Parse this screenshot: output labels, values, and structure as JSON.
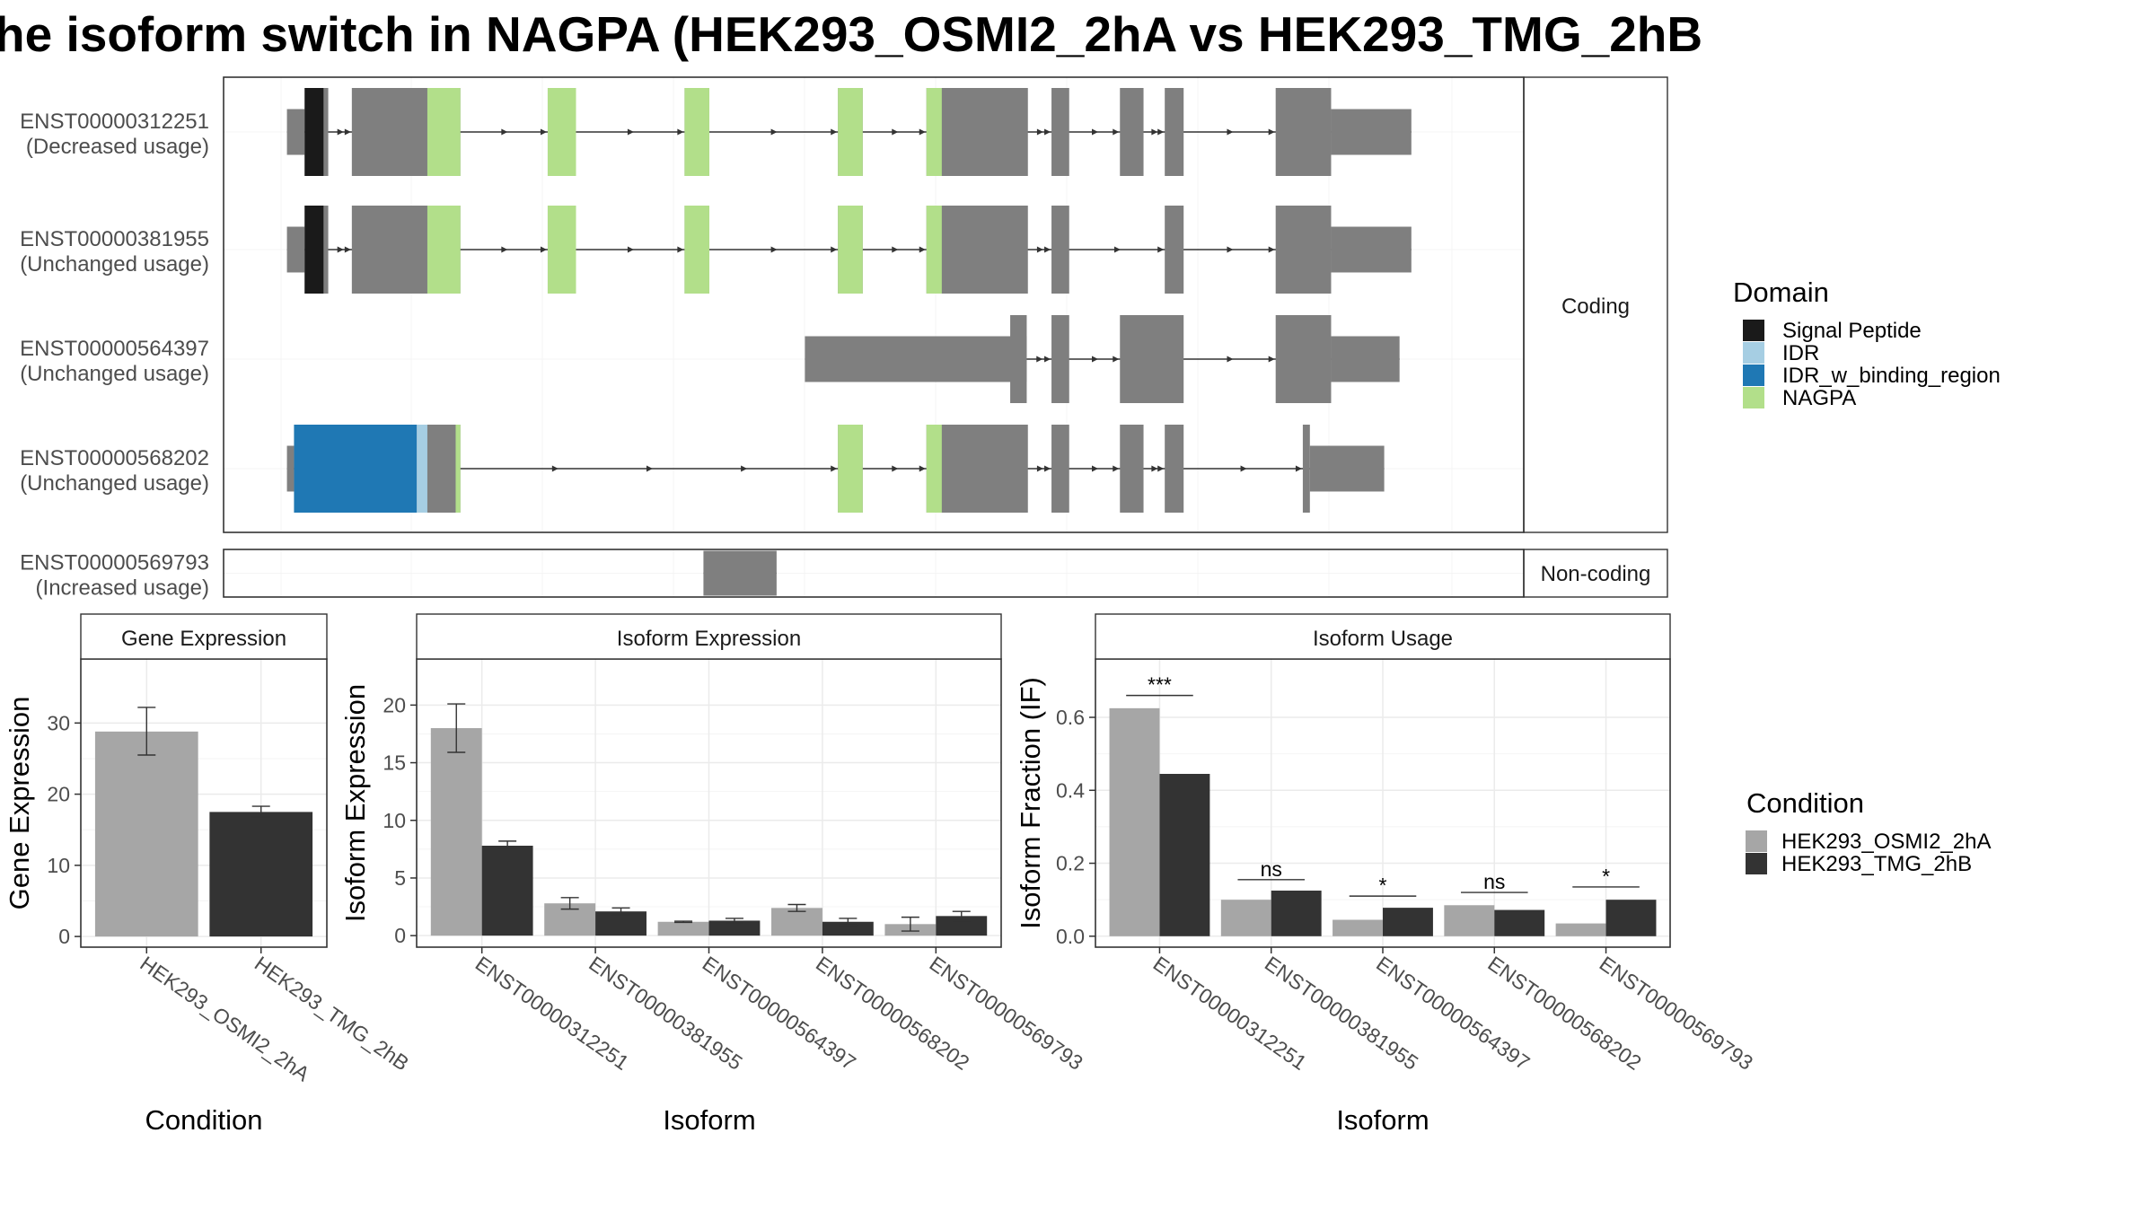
{
  "title": "he isoform switch in NAGPA (HEK293_OSMI2_2hA vs HEK293_TMG_2hB",
  "colors": {
    "exon": "#7f7f7f",
    "intron": "#333333",
    "condition_a": "#a6a6a6",
    "condition_b": "#333333",
    "signal_peptide": "#1a1a1a",
    "idr": "#a6cee3",
    "idr_w_binding_region": "#1f78b4",
    "nagpa": "#b2df8a"
  },
  "structure": {
    "coding_label": "Coding",
    "noncoding_label": "Non-coding",
    "coord_range": [
      0,
      1000
    ],
    "transcripts": [
      {
        "id": "ENST00000312251",
        "usage": "(Decreased usage)",
        "group": "coding",
        "exons": [
          {
            "s": 5,
            "e": 20,
            "cds": false
          },
          {
            "s": 20,
            "e": 40,
            "cds": true
          },
          {
            "s": 60,
            "e": 152,
            "cds": true
          },
          {
            "s": 226,
            "e": 250,
            "cds": true
          },
          {
            "s": 342,
            "e": 363,
            "cds": true
          },
          {
            "s": 472,
            "e": 493,
            "cds": true
          },
          {
            "s": 547,
            "e": 633,
            "cds": true
          },
          {
            "s": 653,
            "e": 668,
            "cds": true
          },
          {
            "s": 711,
            "e": 731,
            "cds": true
          },
          {
            "s": 749,
            "e": 765,
            "cds": true
          },
          {
            "s": 843,
            "e": 890,
            "cds": true
          },
          {
            "s": 890,
            "e": 958,
            "cds": false
          }
        ],
        "domains": [
          {
            "s": 20,
            "e": 36,
            "type": "signal_peptide"
          },
          {
            "s": 124,
            "e": 152,
            "type": "nagpa"
          },
          {
            "s": 226,
            "e": 250,
            "type": "nagpa"
          },
          {
            "s": 342,
            "e": 363,
            "type": "nagpa"
          },
          {
            "s": 472,
            "e": 493,
            "type": "nagpa"
          },
          {
            "s": 547,
            "e": 560,
            "type": "nagpa"
          }
        ]
      },
      {
        "id": "ENST00000381955",
        "usage": "(Unchanged usage)",
        "group": "coding",
        "exons": [
          {
            "s": 5,
            "e": 20,
            "cds": false
          },
          {
            "s": 20,
            "e": 40,
            "cds": true
          },
          {
            "s": 60,
            "e": 152,
            "cds": true
          },
          {
            "s": 226,
            "e": 250,
            "cds": true
          },
          {
            "s": 342,
            "e": 363,
            "cds": true
          },
          {
            "s": 472,
            "e": 493,
            "cds": true
          },
          {
            "s": 547,
            "e": 633,
            "cds": true
          },
          {
            "s": 653,
            "e": 668,
            "cds": true
          },
          {
            "s": 749,
            "e": 765,
            "cds": true
          },
          {
            "s": 843,
            "e": 890,
            "cds": true
          },
          {
            "s": 890,
            "e": 958,
            "cds": false
          }
        ],
        "domains": [
          {
            "s": 20,
            "e": 36,
            "type": "signal_peptide"
          },
          {
            "s": 124,
            "e": 152,
            "type": "nagpa"
          },
          {
            "s": 226,
            "e": 250,
            "type": "nagpa"
          },
          {
            "s": 342,
            "e": 363,
            "type": "nagpa"
          },
          {
            "s": 472,
            "e": 493,
            "type": "nagpa"
          },
          {
            "s": 547,
            "e": 560,
            "type": "nagpa"
          }
        ]
      },
      {
        "id": "ENST00000564397",
        "usage": "(Unchanged usage)",
        "group": "coding",
        "exons": [
          {
            "s": 444,
            "e": 632,
            "cds": false
          },
          {
            "s": 618,
            "e": 632,
            "cds": true
          },
          {
            "s": 653,
            "e": 668,
            "cds": true
          },
          {
            "s": 711,
            "e": 765,
            "cds": true
          },
          {
            "s": 843,
            "e": 890,
            "cds": true
          },
          {
            "s": 890,
            "e": 948,
            "cds": false
          }
        ],
        "domains": []
      },
      {
        "id": "ENST00000568202",
        "usage": "(Unchanged usage)",
        "group": "coding",
        "exons": [
          {
            "s": 5,
            "e": 11,
            "cds": false
          },
          {
            "s": 11,
            "e": 152,
            "cds": true
          },
          {
            "s": 472,
            "e": 493,
            "cds": true
          },
          {
            "s": 547,
            "e": 633,
            "cds": true
          },
          {
            "s": 653,
            "e": 668,
            "cds": true
          },
          {
            "s": 711,
            "e": 731,
            "cds": true
          },
          {
            "s": 749,
            "e": 765,
            "cds": true
          },
          {
            "s": 866,
            "e": 872,
            "cds": true
          },
          {
            "s": 872,
            "e": 935,
            "cds": false
          }
        ],
        "domains": [
          {
            "s": 11,
            "e": 115,
            "type": "idr_w_binding_region"
          },
          {
            "s": 115,
            "e": 124,
            "type": "idr"
          },
          {
            "s": 148,
            "e": 152,
            "type": "nagpa"
          },
          {
            "s": 472,
            "e": 493,
            "type": "nagpa"
          },
          {
            "s": 547,
            "e": 560,
            "type": "nagpa"
          }
        ]
      },
      {
        "id": "ENST00000569793",
        "usage": "(Increased usage)",
        "group": "noncoding",
        "exons": [
          {
            "s": 358,
            "e": 420,
            "cds": true
          }
        ],
        "domains": []
      }
    ]
  },
  "legend_domain": {
    "title": "Domain",
    "items": [
      {
        "label": "Signal Peptide",
        "key": "signal_peptide"
      },
      {
        "label": "IDR",
        "key": "idr"
      },
      {
        "label": "IDR_w_binding_region",
        "key": "idr_w_binding_region"
      },
      {
        "label": "NAGPA",
        "key": "nagpa"
      }
    ]
  },
  "legend_condition": {
    "title": "Condition",
    "items": [
      {
        "label": "HEK293_OSMI2_2hA",
        "key": "condition_a"
      },
      {
        "label": "HEK293_TMG_2hB",
        "key": "condition_b"
      }
    ]
  },
  "chart_data": [
    {
      "type": "bar",
      "title": "Gene Expression",
      "xlabel": "Condition",
      "ylabel": "Gene Expression",
      "categories": [
        "HEK293_OSMI2_2hA",
        "HEK293_TMG_2hB"
      ],
      "values": [
        28.8,
        17.5
      ],
      "errors": [
        [
          25.5,
          32.2
        ],
        [
          16.8,
          18.3
        ]
      ],
      "ylim": [
        -1.5,
        39
      ],
      "yticks": [
        0,
        10,
        20,
        30
      ],
      "grid": true
    },
    {
      "type": "bar",
      "title": "Isoform Expression",
      "xlabel": "Isoform",
      "ylabel": "Isoform Expression",
      "categories": [
        "ENST00000312251",
        "ENST00000381955",
        "ENST00000564397",
        "ENST00000568202",
        "ENST00000569793"
      ],
      "series": [
        {
          "name": "HEK293_OSMI2_2hA",
          "values": [
            18.0,
            2.8,
            1.2,
            2.4,
            1.0
          ],
          "errors": [
            [
              15.9,
              20.1
            ],
            [
              2.3,
              3.3
            ],
            [
              1.15,
              1.25
            ],
            [
              2.1,
              2.7
            ],
            [
              0.4,
              1.6
            ]
          ]
        },
        {
          "name": "HEK293_TMG_2hB",
          "values": [
            7.8,
            2.1,
            1.3,
            1.2,
            1.7
          ],
          "errors": [
            [
              7.5,
              8.2
            ],
            [
              1.8,
              2.4
            ],
            [
              1.1,
              1.5
            ],
            [
              0.9,
              1.5
            ],
            [
              1.3,
              2.1
            ]
          ]
        }
      ],
      "ylim": [
        -1,
        24
      ],
      "yticks": [
        0,
        5,
        10,
        15,
        20
      ],
      "grid": true
    },
    {
      "type": "bar",
      "title": "Isoform Usage",
      "xlabel": "Isoform",
      "ylabel": "Isoform Fraction (IF)",
      "categories": [
        "ENST00000312251",
        "ENST00000381955",
        "ENST00000564397",
        "ENST00000568202",
        "ENST00000569793"
      ],
      "series": [
        {
          "name": "HEK293_OSMI2_2hA",
          "values": [
            0.625,
            0.1,
            0.045,
            0.085,
            0.035
          ]
        },
        {
          "name": "HEK293_TMG_2hB",
          "values": [
            0.445,
            0.125,
            0.078,
            0.072,
            0.1
          ]
        }
      ],
      "significance": [
        {
          "label": "***",
          "y": 0.66
        },
        {
          "label": "ns",
          "y": 0.155
        },
        {
          "label": "*",
          "y": 0.11
        },
        {
          "label": "ns",
          "y": 0.12
        },
        {
          "label": "*",
          "y": 0.135
        }
      ],
      "ylim": [
        -0.03,
        0.76
      ],
      "yticks": [
        0.0,
        0.2,
        0.4,
        0.6
      ],
      "ytick_labels": [
        "0.0",
        "0.2",
        "0.4",
        "0.6"
      ],
      "grid": true
    }
  ]
}
